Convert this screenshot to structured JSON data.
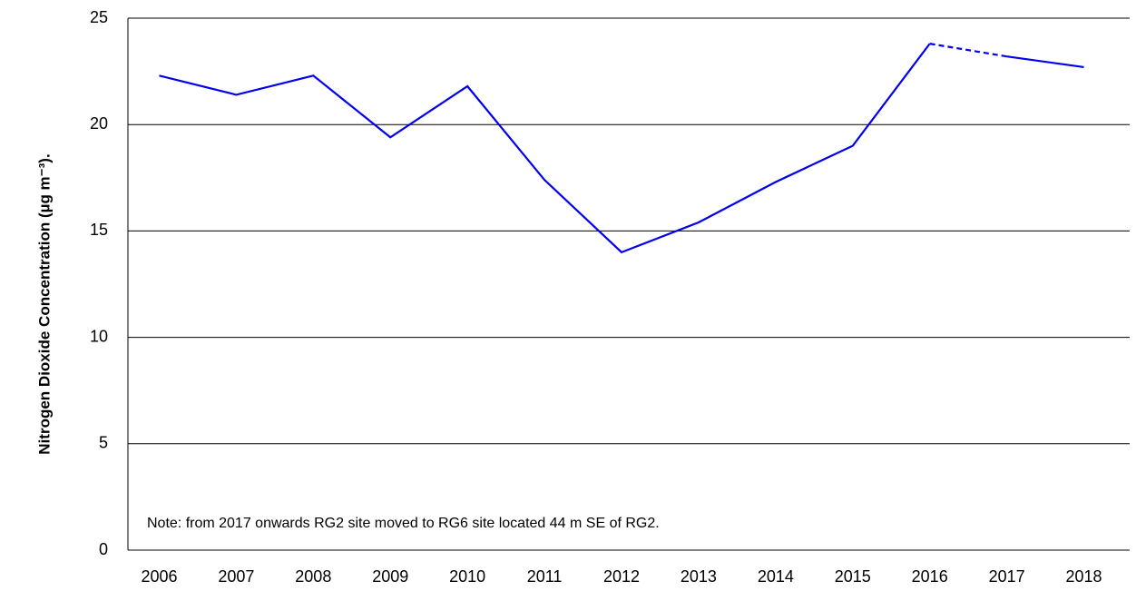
{
  "chart_data": {
    "type": "line",
    "y_label": "Nitrogen Dioxide Concentration (µg m⁻³).",
    "annotation": "Note: from 2017 onwards RG2 site moved to RG6 site located 44 m SE of RG2.",
    "categories": [
      "2006",
      "2007",
      "2008",
      "2009",
      "2010",
      "2011",
      "2012",
      "2013",
      "2014",
      "2015",
      "2016",
      "2017",
      "2018"
    ],
    "series": [
      {
        "color": "#0000ee",
        "dashed": false,
        "values": [
          22.3,
          21.4,
          22.3,
          19.4,
          21.8,
          17.4,
          14.0,
          15.4,
          17.3,
          19.0,
          23.8,
          null,
          null
        ]
      },
      {
        "color": "#0000ee",
        "dashed": true,
        "values": [
          null,
          null,
          null,
          null,
          null,
          null,
          null,
          null,
          null,
          null,
          23.8,
          23.2,
          null
        ]
      },
      {
        "color": "#0000ee",
        "dashed": false,
        "values": [
          null,
          null,
          null,
          null,
          null,
          null,
          null,
          null,
          null,
          null,
          null,
          23.2,
          22.7
        ]
      }
    ],
    "ylim": [
      0,
      25
    ],
    "yticks": [
      0,
      5,
      10,
      15,
      20,
      25
    ],
    "grid": true
  }
}
